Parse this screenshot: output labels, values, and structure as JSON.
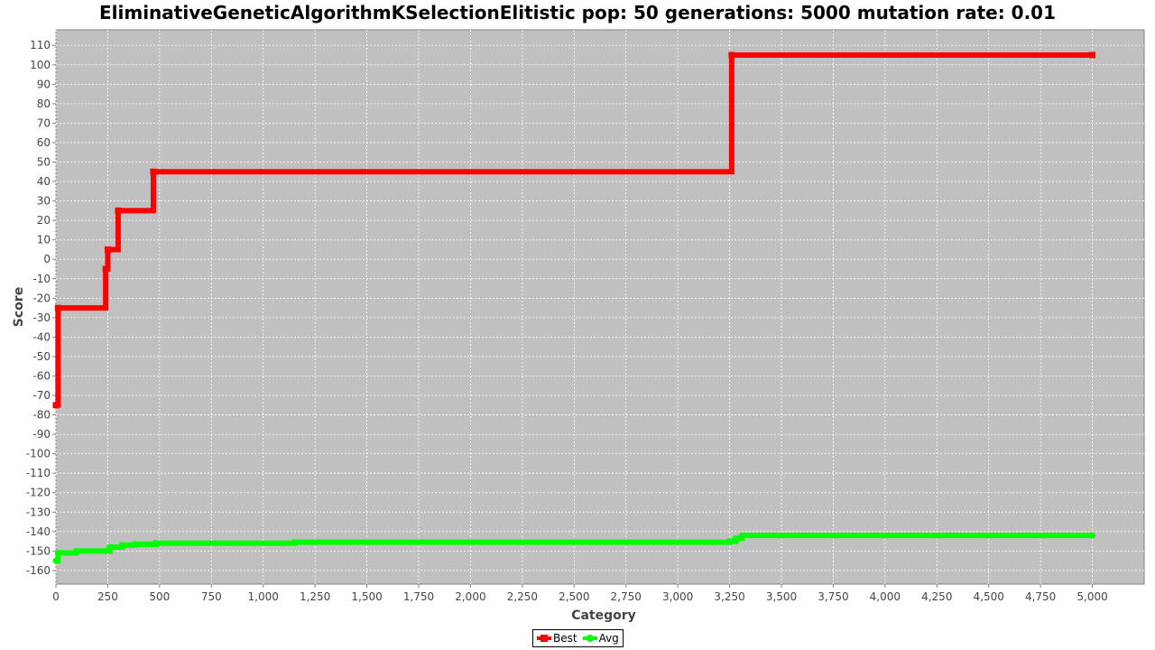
{
  "chart_data": {
    "type": "line",
    "title": "EliminativeGeneticAlgorithmKSelectionElitistic pop: 50 generations: 5000 mutation rate: 0.01",
    "xlabel": "Category",
    "ylabel": "Score",
    "xlim": [
      0,
      5250
    ],
    "ylim": [
      -167,
      118
    ],
    "x_ticks": [
      0,
      250,
      500,
      750,
      1000,
      1250,
      1500,
      1750,
      2000,
      2250,
      2500,
      2750,
      3000,
      3250,
      3500,
      3750,
      4000,
      4250,
      4500,
      4750,
      5000
    ],
    "x_tick_labels": [
      "0",
      "250",
      "500",
      "750",
      "1,000",
      "1,250",
      "1,500",
      "1,750",
      "2,000",
      "2,250",
      "2,500",
      "2,750",
      "3,000",
      "3,250",
      "3,500",
      "3,750",
      "4,000",
      "4,250",
      "4,500",
      "4,750",
      "5,000"
    ],
    "y_ticks": [
      -160,
      -150,
      -140,
      -130,
      -120,
      -110,
      -100,
      -90,
      -80,
      -70,
      -60,
      -50,
      -40,
      -30,
      -20,
      -10,
      0,
      10,
      20,
      30,
      40,
      50,
      60,
      70,
      80,
      90,
      100,
      110
    ],
    "y_tick_labels": [
      "-160",
      "-150",
      "-140",
      "-130",
      "-120",
      "-110",
      "-100",
      "-90",
      "-80",
      "-70",
      "-60",
      "-50",
      "-40",
      "-30",
      "-20",
      "-10",
      "0",
      "10",
      "20",
      "30",
      "40",
      "50",
      "60",
      "70",
      "80",
      "90",
      "100",
      "110"
    ],
    "grid": true,
    "legend_position": "bottom-center",
    "background": "#c0c0c0",
    "series": [
      {
        "name": "Best",
        "color": "#ff0000",
        "marker": "square",
        "x": [
          0,
          10,
          240,
          250,
          300,
          470,
          3260,
          5000
        ],
        "y": [
          -75,
          -25,
          -5,
          5,
          25,
          45,
          105,
          105
        ]
      },
      {
        "name": "Avg",
        "color": "#00ff00",
        "marker": "circle",
        "x": [
          0,
          10,
          100,
          240,
          260,
          320,
          380,
          480,
          1150,
          3250,
          3280,
          3310,
          5000
        ],
        "y": [
          -155,
          -151,
          -150,
          -150,
          -148,
          -147,
          -146.5,
          -146,
          -145.5,
          -145,
          -143.5,
          -142,
          -142
        ]
      }
    ]
  }
}
